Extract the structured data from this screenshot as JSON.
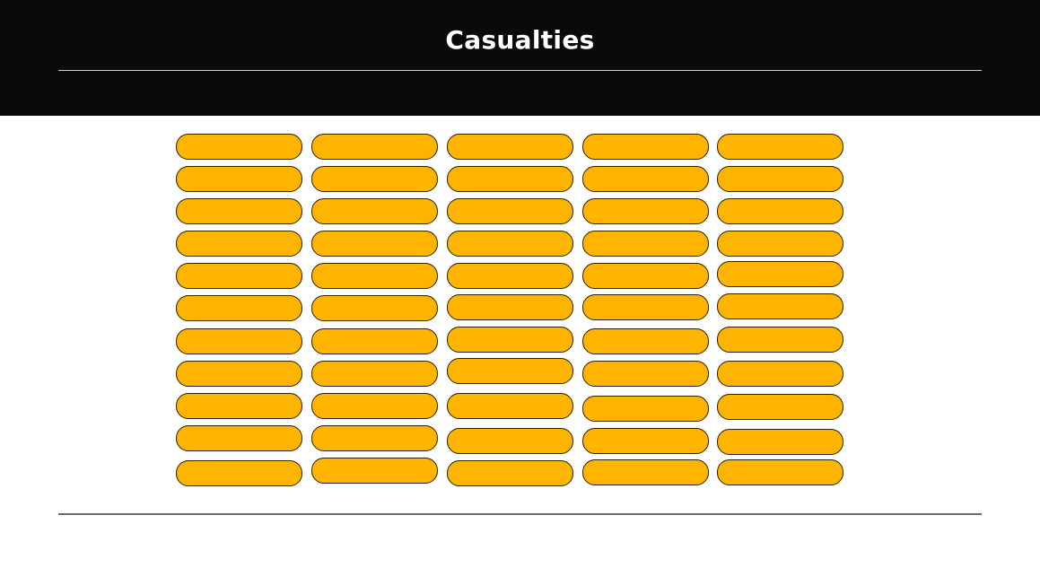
{
  "header": {
    "title": "Casualties"
  },
  "colors": {
    "header_bg": "#0a0a0a",
    "pill_fill": "#ffb400",
    "pill_border": "#2b2000"
  },
  "grid": {
    "columns": 5,
    "rows": 11
  }
}
